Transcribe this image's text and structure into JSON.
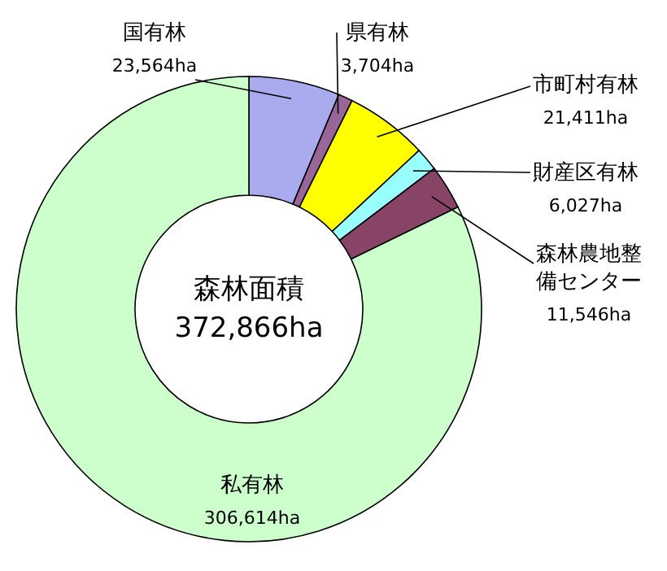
{
  "chart_data": {
    "type": "donut",
    "title": "森林面積",
    "annotations": [
      "372,866ha"
    ],
    "categories": [
      "国有林",
      "県有林",
      "市町村有林",
      "財産区有林",
      "森林農地整備センター",
      "私有林"
    ],
    "values": [
      23564,
      3704,
      21411,
      6027,
      11546,
      306614
    ],
    "value_labels": [
      "23,564ha",
      "3,704ha",
      "21,411ha",
      "6,027ha",
      "11,546ha",
      "306,614ha"
    ],
    "colors": [
      "#aaaaee",
      "#996699",
      "#ffff00",
      "#99ffff",
      "#884466",
      "#ccffcc"
    ]
  }
}
